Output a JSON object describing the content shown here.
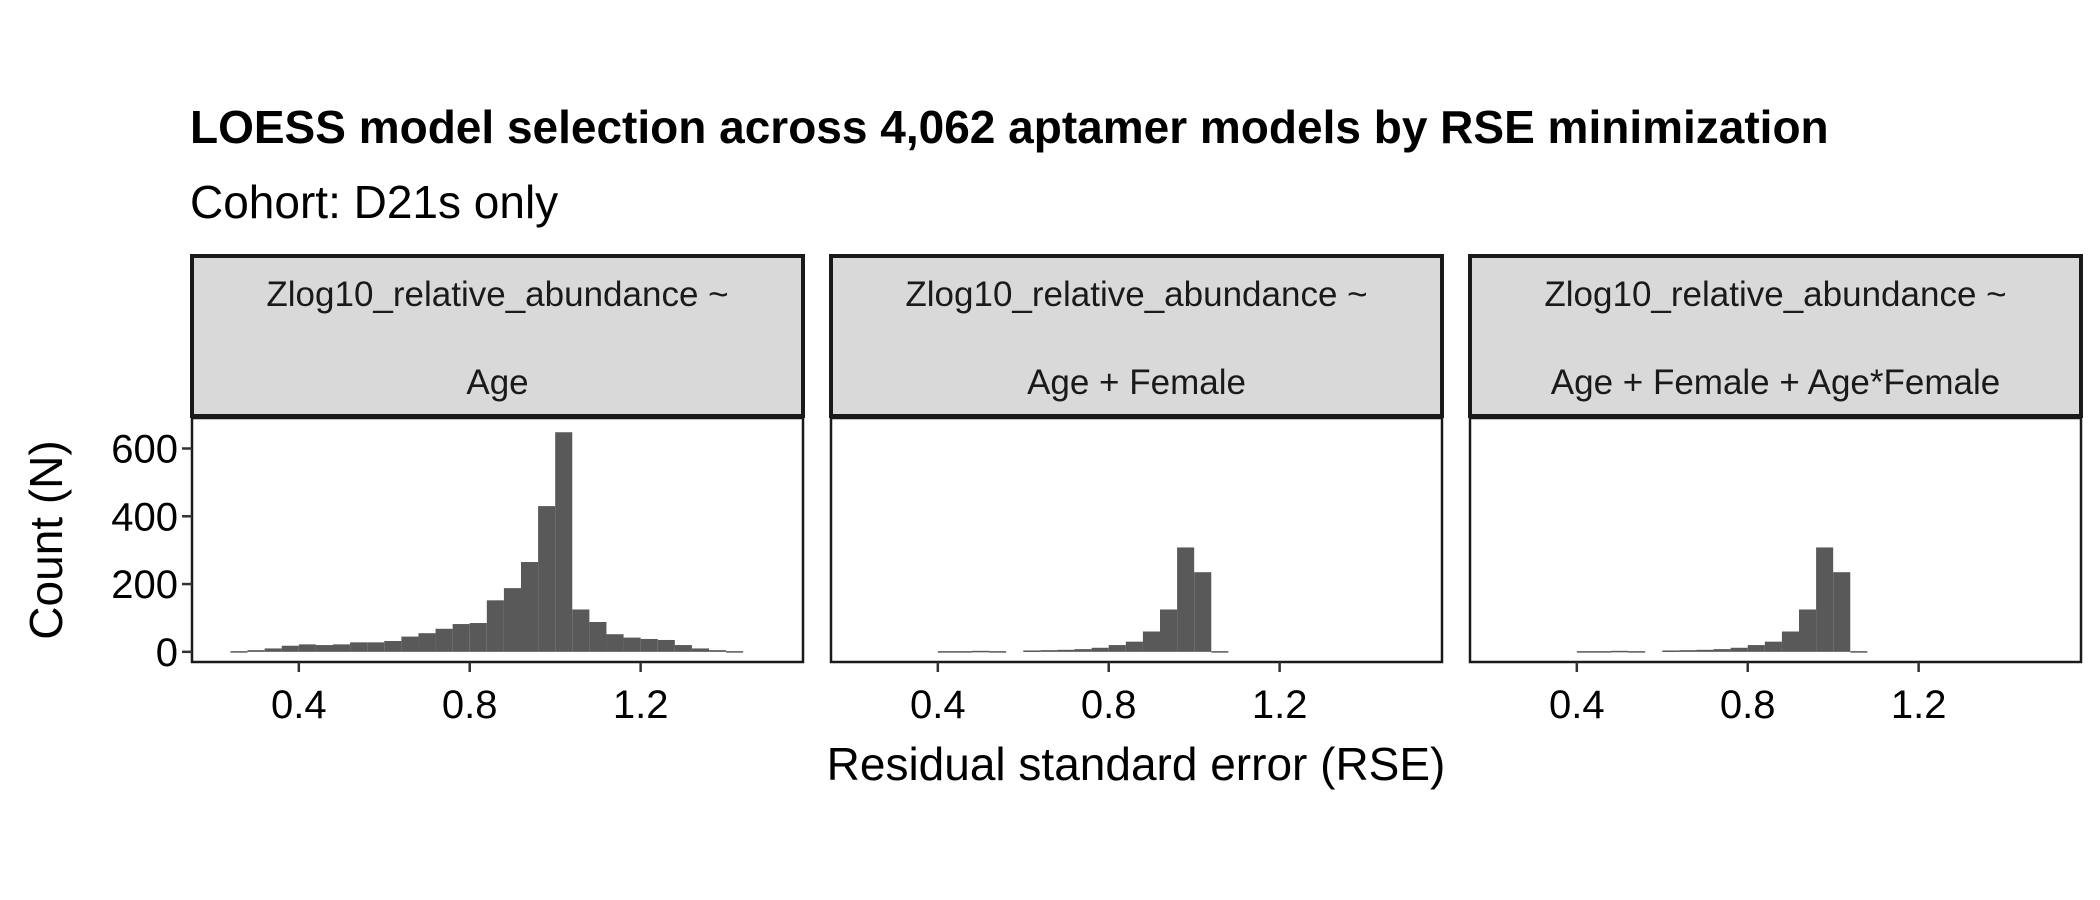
{
  "title": "LOESS model selection across 4,062 aptamer models by RSE minimization",
  "subtitle": "Cohort: D21s only",
  "chart_data": {
    "type": "bar",
    "xlabel": "Residual standard error (RSE)",
    "ylabel": "Count (N)",
    "xlim": [
      0.15,
      1.58
    ],
    "ylim": [
      -30,
      690
    ],
    "x_ticks": [
      0.4,
      0.8,
      1.2
    ],
    "x_tick_labels": [
      "0.4",
      "0.8",
      "1.2"
    ],
    "y_ticks": [
      0,
      200,
      400,
      600
    ],
    "y_tick_labels": [
      "0",
      "200",
      "400",
      "600"
    ],
    "bin_width": 0.04,
    "bar_color": "#595959",
    "grid": false,
    "facets": [
      {
        "strip_line1": "Zlog10_relative_abundance ~",
        "strip_line2": "Age",
        "bins": [
          {
            "x": 0.26,
            "count": 2
          },
          {
            "x": 0.3,
            "count": 5
          },
          {
            "x": 0.34,
            "count": 10
          },
          {
            "x": 0.38,
            "count": 18
          },
          {
            "x": 0.42,
            "count": 22
          },
          {
            "x": 0.46,
            "count": 20
          },
          {
            "x": 0.5,
            "count": 22
          },
          {
            "x": 0.54,
            "count": 28
          },
          {
            "x": 0.58,
            "count": 28
          },
          {
            "x": 0.62,
            "count": 32
          },
          {
            "x": 0.66,
            "count": 45
          },
          {
            "x": 0.7,
            "count": 55
          },
          {
            "x": 0.74,
            "count": 68
          },
          {
            "x": 0.78,
            "count": 82
          },
          {
            "x": 0.82,
            "count": 85
          },
          {
            "x": 0.86,
            "count": 152
          },
          {
            "x": 0.9,
            "count": 188
          },
          {
            "x": 0.94,
            "count": 265
          },
          {
            "x": 0.98,
            "count": 430
          },
          {
            "x": 1.02,
            "count": 648
          },
          {
            "x": 1.06,
            "count": 125
          },
          {
            "x": 1.1,
            "count": 88
          },
          {
            "x": 1.14,
            "count": 52
          },
          {
            "x": 1.18,
            "count": 42
          },
          {
            "x": 1.22,
            "count": 38
          },
          {
            "x": 1.26,
            "count": 35
          },
          {
            "x": 1.3,
            "count": 20
          },
          {
            "x": 1.34,
            "count": 10
          },
          {
            "x": 1.38,
            "count": 5
          },
          {
            "x": 1.42,
            "count": 2
          }
        ]
      },
      {
        "strip_line1": "Zlog10_relative_abundance ~",
        "strip_line2": "Age + Female",
        "bins": [
          {
            "x": 0.42,
            "count": 2
          },
          {
            "x": 0.46,
            "count": 2
          },
          {
            "x": 0.5,
            "count": 3
          },
          {
            "x": 0.54,
            "count": 2
          },
          {
            "x": 0.62,
            "count": 4
          },
          {
            "x": 0.66,
            "count": 5
          },
          {
            "x": 0.7,
            "count": 6
          },
          {
            "x": 0.74,
            "count": 8
          },
          {
            "x": 0.78,
            "count": 12
          },
          {
            "x": 0.82,
            "count": 20
          },
          {
            "x": 0.86,
            "count": 30
          },
          {
            "x": 0.9,
            "count": 60
          },
          {
            "x": 0.94,
            "count": 125
          },
          {
            "x": 0.98,
            "count": 308
          },
          {
            "x": 1.02,
            "count": 235
          },
          {
            "x": 1.06,
            "count": 2
          }
        ]
      },
      {
        "strip_line1": "Zlog10_relative_abundance ~",
        "strip_line2": "Age + Female + Age*Female",
        "bins": [
          {
            "x": 0.42,
            "count": 2
          },
          {
            "x": 0.46,
            "count": 2
          },
          {
            "x": 0.5,
            "count": 3
          },
          {
            "x": 0.54,
            "count": 2
          },
          {
            "x": 0.62,
            "count": 4
          },
          {
            "x": 0.66,
            "count": 5
          },
          {
            "x": 0.7,
            "count": 6
          },
          {
            "x": 0.74,
            "count": 8
          },
          {
            "x": 0.78,
            "count": 12
          },
          {
            "x": 0.82,
            "count": 20
          },
          {
            "x": 0.86,
            "count": 30
          },
          {
            "x": 0.9,
            "count": 60
          },
          {
            "x": 0.94,
            "count": 125
          },
          {
            "x": 0.98,
            "count": 308
          },
          {
            "x": 1.02,
            "count": 235
          },
          {
            "x": 1.06,
            "count": 2
          }
        ]
      }
    ]
  }
}
